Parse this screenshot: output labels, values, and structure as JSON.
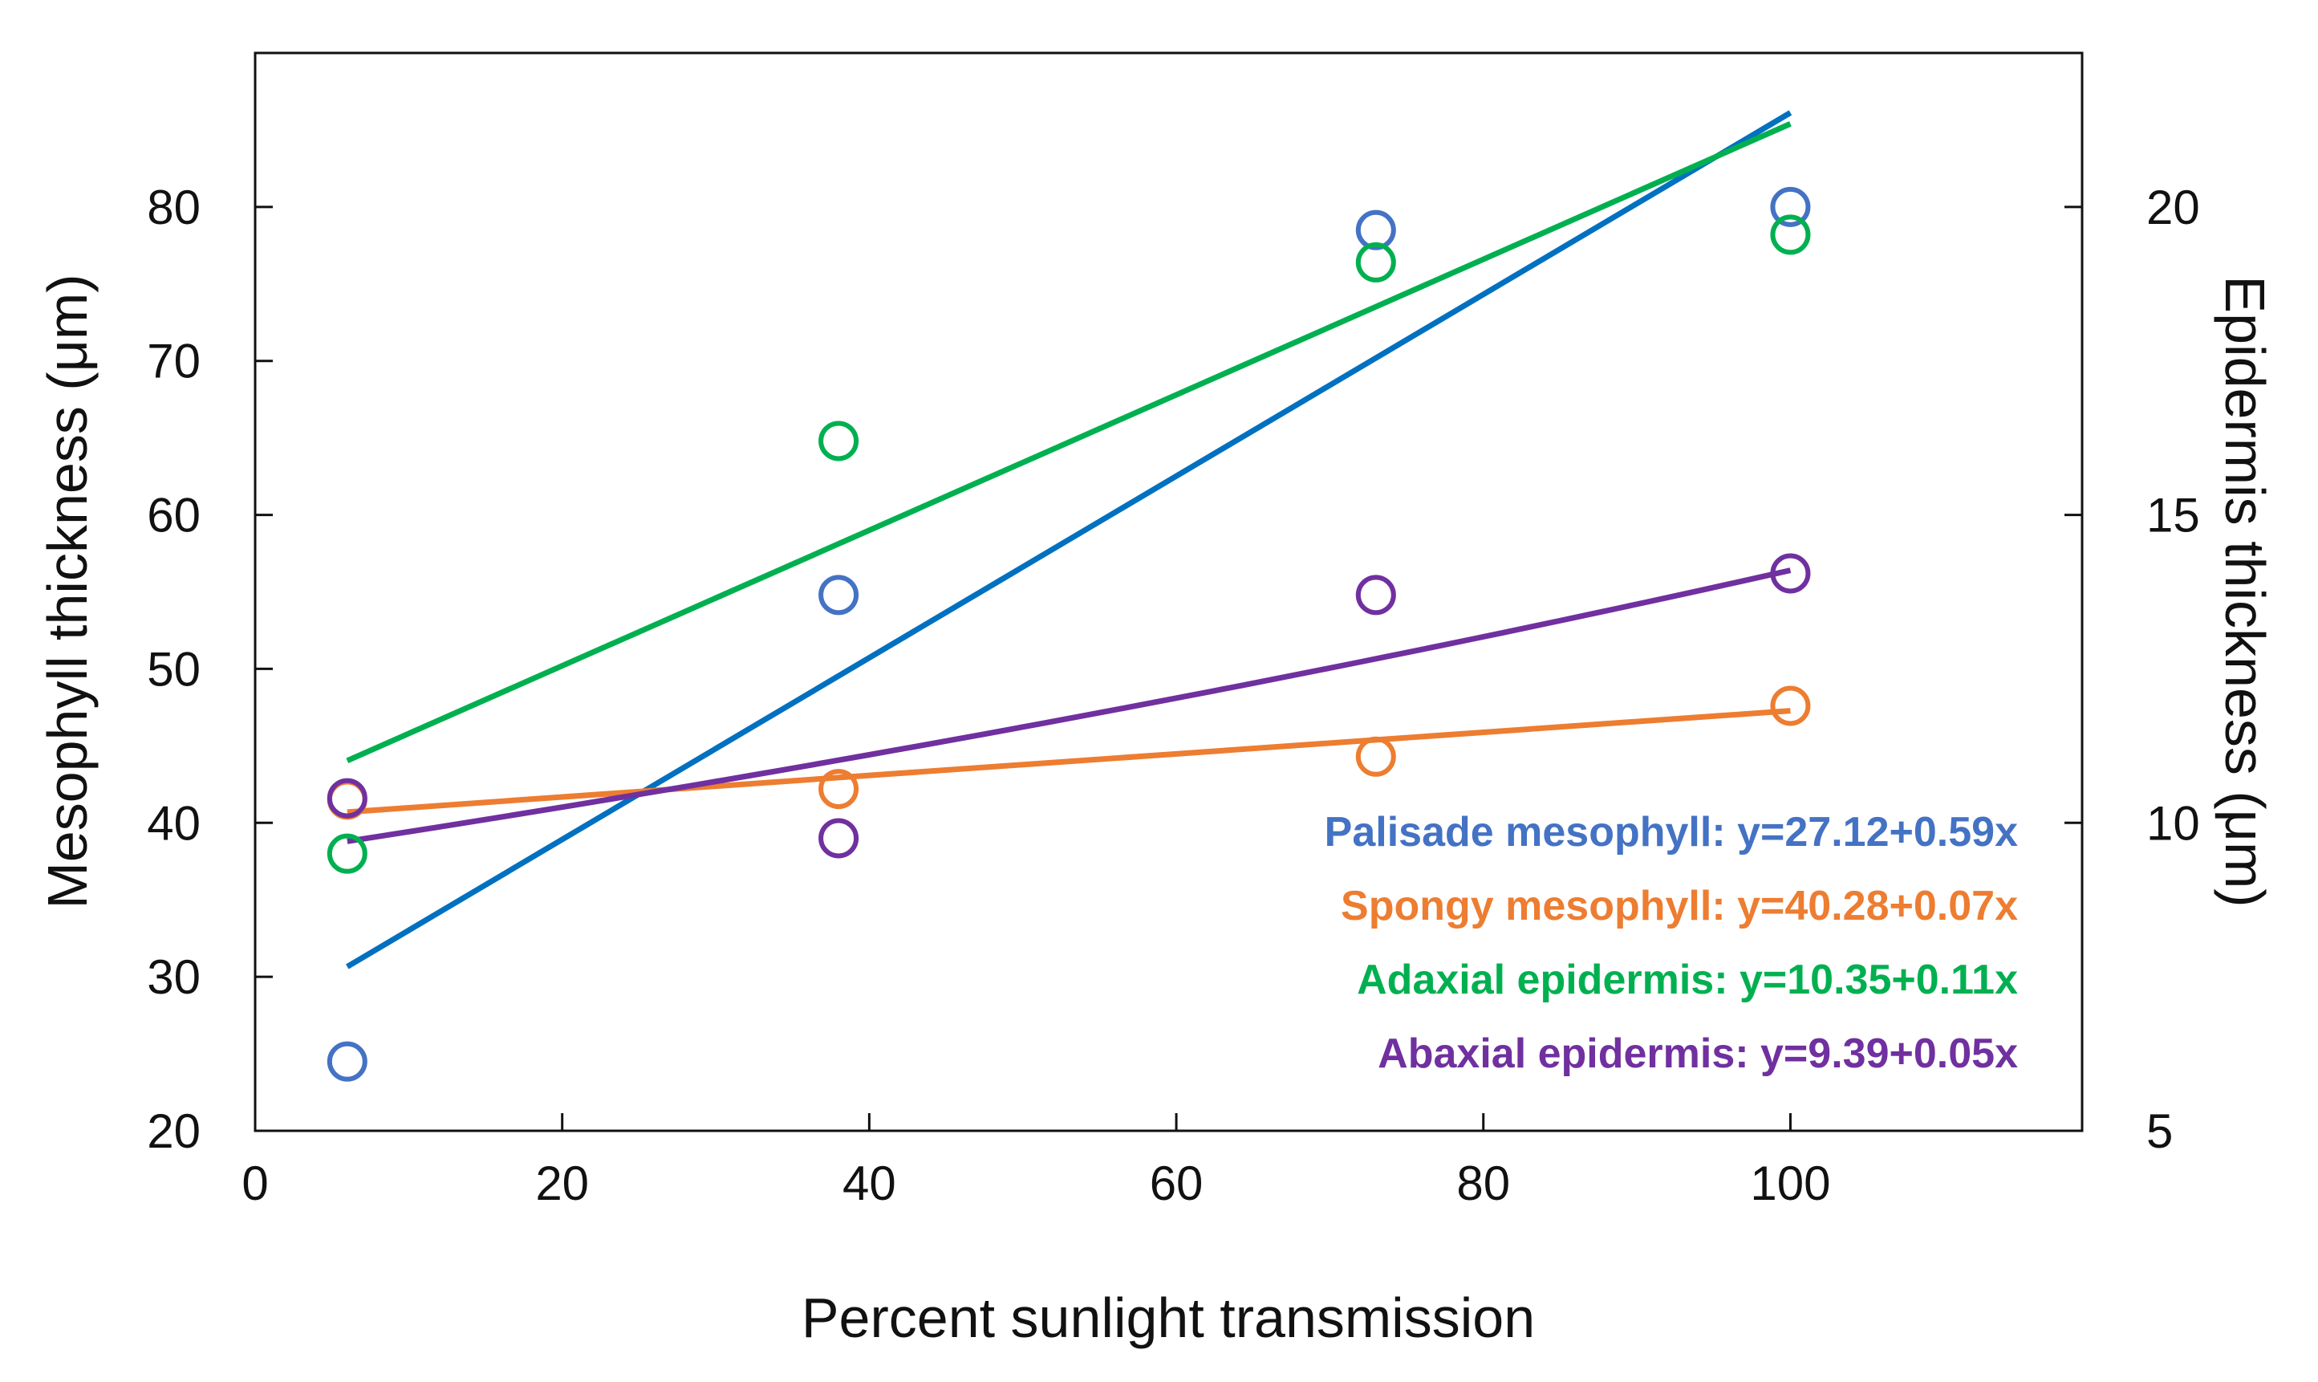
{
  "chart_data": {
    "type": "scatter",
    "xlabel": "Percent sunlight transmission",
    "ylabel_left": "Mesophyll thickness (μm)",
    "ylabel_right": "Epidermis thickness (μm)",
    "xlim": [
      0,
      119
    ],
    "ylim_left": [
      20,
      90
    ],
    "ylim_right": [
      5,
      22.5
    ],
    "x_ticks": [
      0,
      20,
      40,
      60,
      80,
      100
    ],
    "y_left_ticks": [
      20,
      30,
      40,
      50,
      60,
      70,
      80
    ],
    "y_right_ticks": [
      5,
      10,
      15,
      20
    ],
    "x_tick_labels": [
      "0",
      "20",
      "40",
      "60",
      "80",
      "100"
    ],
    "y_left_tick_labels": [
      "20",
      "30",
      "40",
      "50",
      "60",
      "70",
      "80"
    ],
    "y_right_tick_labels": [
      "5",
      "10",
      "15",
      "20"
    ],
    "grid": false,
    "legend_position": "bottom-right",
    "series": [
      {
        "name": "Palisade mesophyll",
        "axis": "left",
        "color": "#4472c4",
        "line_color": "#0070c0",
        "x": [
          6,
          38,
          73,
          100
        ],
        "y": [
          24.5,
          54.8,
          78.5,
          80.0
        ],
        "fit": "linear",
        "fit_x_range": [
          6,
          100
        ],
        "intercept": 27.12,
        "slope": 0.59,
        "equation": "Palisade mesophyll: y=27.12+0.59x"
      },
      {
        "name": "Spongy mesophyll",
        "axis": "left",
        "color": "#ed7d31",
        "line_color": "#ed7d31",
        "x": [
          6,
          38,
          73,
          100
        ],
        "y": [
          41.5,
          42.2,
          44.3,
          47.6
        ],
        "fit": "linear",
        "fit_x_range": [
          6,
          100
        ],
        "intercept": 40.28,
        "slope": 0.07,
        "equation": "Spongy mesophyll: y=40.28+0.07x"
      },
      {
        "name": "Adaxial epidermis",
        "axis": "right",
        "color": "#00b050",
        "line_color": "#00b050",
        "x": [
          6,
          38,
          73,
          100
        ],
        "y": [
          9.5,
          16.2,
          19.1,
          19.55
        ],
        "fit": "linear",
        "fit_x_range": [
          6,
          100
        ],
        "intercept": 10.35,
        "slope": 0.11,
        "equation": "Adaxial epidermis: y=10.35+0.11x"
      },
      {
        "name": "Abaxial epidermis",
        "axis": "right",
        "color": "#7030a0",
        "line_color": "#7030a0",
        "x": [
          6,
          38,
          73,
          100
        ],
        "y": [
          10.4,
          9.75,
          13.7,
          14.05
        ],
        "fit": "exponential",
        "fit_x_range": [
          6,
          100
        ],
        "fit_y_range": [
          9.7,
          14.1
        ],
        "equation": "Abaxial epidermis: y=9.39+0.05x"
      }
    ]
  }
}
